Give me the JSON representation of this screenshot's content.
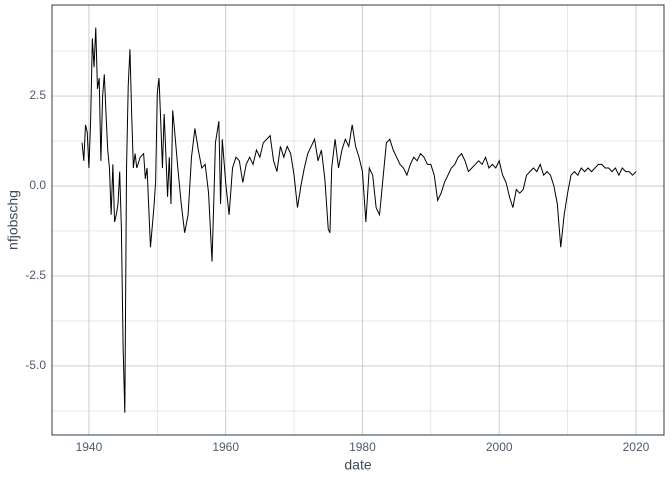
{
  "chart_data": {
    "type": "line",
    "x_label": "date",
    "y_label": "nfjobschg",
    "x": [
      1939.0,
      1939.25,
      1939.5,
      1939.75,
      1940.0,
      1940.25,
      1940.5,
      1940.75,
      1941.0,
      1941.25,
      1941.5,
      1941.75,
      1942.0,
      1942.25,
      1942.5,
      1942.75,
      1943.0,
      1943.25,
      1943.5,
      1943.75,
      1944.0,
      1944.25,
      1944.5,
      1944.75,
      1945.0,
      1945.25,
      1945.5,
      1945.75,
      1946.0,
      1946.25,
      1946.5,
      1946.75,
      1947.0,
      1947.5,
      1948.0,
      1948.25,
      1948.5,
      1949.0,
      1949.5,
      1949.75,
      1950.0,
      1950.25,
      1950.5,
      1950.75,
      1951.0,
      1951.25,
      1951.5,
      1951.75,
      1952.0,
      1952.25,
      1952.5,
      1953.0,
      1953.5,
      1954.0,
      1954.5,
      1955.0,
      1955.5,
      1956.0,
      1956.5,
      1957.0,
      1957.5,
      1958.0,
      1958.25,
      1958.5,
      1959.0,
      1959.25,
      1959.5,
      1960.0,
      1960.5,
      1961.0,
      1961.5,
      1962.0,
      1962.5,
      1963.0,
      1963.5,
      1964.0,
      1964.5,
      1965.0,
      1965.5,
      1966.0,
      1966.5,
      1967.0,
      1967.5,
      1968.0,
      1968.5,
      1969.0,
      1969.5,
      1970.0,
      1970.5,
      1971.0,
      1971.5,
      1972.0,
      1972.5,
      1973.0,
      1973.5,
      1974.0,
      1974.5,
      1975.0,
      1975.25,
      1975.5,
      1976.0,
      1976.5,
      1977.0,
      1977.5,
      1978.0,
      1978.5,
      1979.0,
      1979.5,
      1980.0,
      1980.5,
      1981.0,
      1981.5,
      1982.0,
      1982.5,
      1983.0,
      1983.5,
      1984.0,
      1984.5,
      1985.0,
      1985.5,
      1986.0,
      1986.5,
      1987.0,
      1987.5,
      1988.0,
      1988.5,
      1989.0,
      1989.5,
      1990.0,
      1990.5,
      1991.0,
      1991.5,
      1992.0,
      1992.5,
      1993.0,
      1993.5,
      1994.0,
      1994.5,
      1995.0,
      1995.5,
      1996.0,
      1996.5,
      1997.0,
      1997.5,
      1998.0,
      1998.5,
      1999.0,
      1999.5,
      2000.0,
      2000.5,
      2001.0,
      2001.5,
      2002.0,
      2002.5,
      2003.0,
      2003.5,
      2004.0,
      2004.5,
      2005.0,
      2005.5,
      2006.0,
      2006.5,
      2007.0,
      2007.5,
      2008.0,
      2008.5,
      2009.0,
      2009.5,
      2010.0,
      2010.5,
      2011.0,
      2011.5,
      2012.0,
      2012.5,
      2013.0,
      2013.5,
      2014.0,
      2014.5,
      2015.0,
      2015.5,
      2016.0,
      2016.5,
      2017.0,
      2017.5,
      2018.0,
      2018.5,
      2019.0,
      2019.5,
      2020.0
    ],
    "series": [
      {
        "color": "#000000",
        "values": [
          1.2,
          0.7,
          1.7,
          1.5,
          0.5,
          1.8,
          4.1,
          3.3,
          4.4,
          2.7,
          3.0,
          0.7,
          2.5,
          3.1,
          2.0,
          1.0,
          0.5,
          -0.8,
          0.6,
          -1.0,
          -0.8,
          -0.5,
          0.4,
          -1.2,
          -4.5,
          -6.3,
          0.5,
          2.8,
          3.8,
          2.0,
          0.5,
          0.9,
          0.5,
          0.8,
          0.9,
          0.2,
          0.5,
          -1.7,
          -0.6,
          0.1,
          2.6,
          3.0,
          1.8,
          0.5,
          2.0,
          0.9,
          -0.3,
          0.8,
          -0.5,
          2.1,
          1.6,
          0.5,
          -0.5,
          -1.3,
          -0.8,
          0.8,
          1.6,
          1.0,
          0.5,
          0.6,
          -0.2,
          -2.1,
          -0.5,
          1.2,
          1.8,
          -0.5,
          1.3,
          0.1,
          -0.8,
          0.5,
          0.8,
          0.7,
          0.1,
          0.6,
          0.8,
          0.6,
          1.0,
          0.8,
          1.2,
          1.3,
          1.4,
          0.7,
          0.4,
          1.1,
          0.8,
          1.1,
          0.9,
          0.3,
          -0.6,
          0.0,
          0.5,
          0.9,
          1.1,
          1.3,
          0.7,
          1.0,
          0.2,
          -1.2,
          -1.3,
          0.5,
          1.3,
          0.5,
          1.0,
          1.3,
          1.1,
          1.7,
          1.1,
          0.8,
          0.4,
          -1.0,
          0.5,
          0.3,
          -0.6,
          -0.8,
          0.2,
          1.2,
          1.3,
          1.0,
          0.8,
          0.6,
          0.5,
          0.3,
          0.6,
          0.8,
          0.7,
          0.9,
          0.8,
          0.6,
          0.6,
          0.3,
          -0.4,
          -0.2,
          0.1,
          0.3,
          0.5,
          0.6,
          0.8,
          0.9,
          0.7,
          0.4,
          0.5,
          0.6,
          0.7,
          0.6,
          0.8,
          0.5,
          0.6,
          0.5,
          0.7,
          0.3,
          0.1,
          -0.3,
          -0.6,
          -0.1,
          -0.2,
          -0.1,
          0.3,
          0.4,
          0.5,
          0.4,
          0.6,
          0.3,
          0.4,
          0.3,
          0.0,
          -0.5,
          -1.7,
          -0.8,
          -0.2,
          0.3,
          0.4,
          0.3,
          0.5,
          0.4,
          0.5,
          0.4,
          0.5,
          0.6,
          0.6,
          0.5,
          0.5,
          0.4,
          0.5,
          0.3,
          0.5,
          0.4,
          0.4,
          0.3,
          0.4
        ]
      }
    ],
    "xlim": [
      1934.6,
      2024.1
    ],
    "xticks": [
      1940,
      1960,
      1980,
      2000,
      2020
    ],
    "xminor": [
      1950,
      1970,
      1990,
      2010
    ],
    "ylim": [
      -6.92,
      5.03
    ],
    "yticks": [
      {
        "value": -5,
        "label": "-5.0"
      },
      {
        "value": -2.5,
        "label": "-2.5"
      },
      {
        "value": 0,
        "label": "0.0"
      },
      2.5
    ],
    "yminor": [
      -6.25,
      -3.75,
      -1.25,
      1.25,
      3.75
    ],
    "grid": true
  }
}
